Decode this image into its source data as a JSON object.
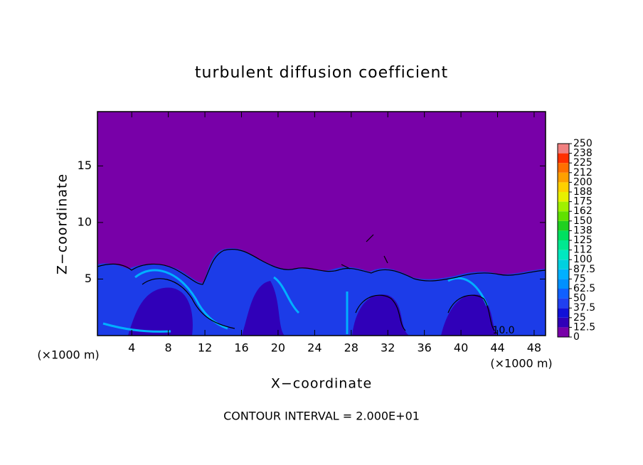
{
  "chart_data": {
    "type": "contour",
    "title": "turbulent diffusion coefficient",
    "x_label": "X−coordinate",
    "y_label": "Z−coordinate",
    "x_unit": "(×1000 m)",
    "y_unit": "(×1000 m)",
    "footnote": "CONTOUR INTERVAL = 2.000E+01",
    "contour_label": "10.0",
    "xlim": [
      0.25,
      49.25
    ],
    "ylim": [
      0,
      19.8
    ],
    "xticks": [
      4,
      8,
      12,
      16,
      20,
      24,
      28,
      32,
      36,
      40,
      44,
      48
    ],
    "yticks": [
      5,
      10,
      15
    ],
    "colorbar": {
      "levels": [
        0,
        12.5,
        25,
        37.5,
        50,
        62.5,
        75,
        87.5,
        100,
        {
          "value": 112.5,
          "label": "112"
        },
        125,
        {
          "value": 137.5,
          "label": "138"
        },
        150,
        {
          "value": 162.5,
          "label": "162"
        },
        175,
        {
          "value": 187.5,
          "label": "188"
        },
        200,
        {
          "value": 212.5,
          "label": "212"
        },
        225,
        {
          "value": 237.5,
          "label": "238"
        },
        250
      ],
      "colors": [
        "#7800a8",
        "#3000b8",
        "#1010d8",
        "#2040f0",
        "#1060ff",
        "#0090ff",
        "#00b0ff",
        "#00d0e0",
        "#00e8c0",
        "#00e890",
        "#00e060",
        "#20d020",
        "#60e000",
        "#a0f000",
        "#e8f000",
        "#ffd000",
        "#ffa000",
        "#ff7000",
        "#ff3000",
        "#f08080"
      ]
    }
  }
}
